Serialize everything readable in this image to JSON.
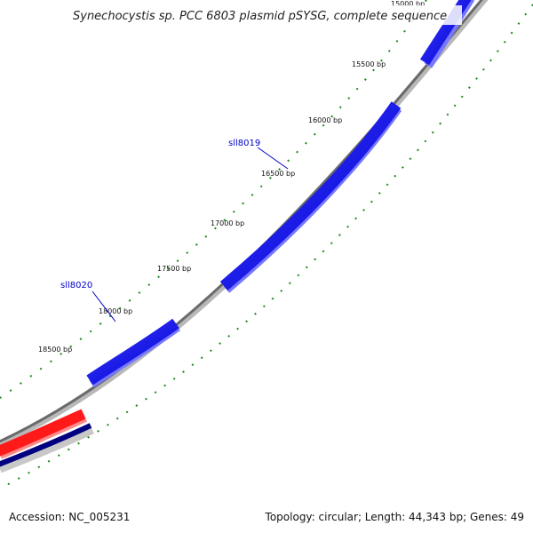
{
  "title": "Synechocystis sp. PCC 6803 plasmid pSYSG, complete sequence",
  "accession": "Accession: NC_005231",
  "summary": "Topology: circular; Length: 44,343 bp; Genes: 49",
  "ticks": [
    {
      "bp": 15000,
      "label": "15000 bp"
    },
    {
      "bp": 15500,
      "label": "15500 bp"
    },
    {
      "bp": 16000,
      "label": "16000 bp"
    },
    {
      "bp": 16500,
      "label": "16500 bp"
    },
    {
      "bp": 17000,
      "label": "17000 bp"
    },
    {
      "bp": 17500,
      "label": "17500 bp"
    },
    {
      "bp": 18000,
      "label": "18000 bp"
    },
    {
      "bp": 18500,
      "label": "18500 bp"
    }
  ],
  "genes": [
    {
      "name": "sll8019",
      "color": "#0000ff"
    },
    {
      "name": "sll8020",
      "color": "#0000ff"
    }
  ],
  "colors": {
    "backbone": "#808080",
    "forward_gene": "#0000ff",
    "rna_feature": "#ff0000",
    "reverse_track": "#000080",
    "gc_ticks": "#1a8a1a"
  }
}
